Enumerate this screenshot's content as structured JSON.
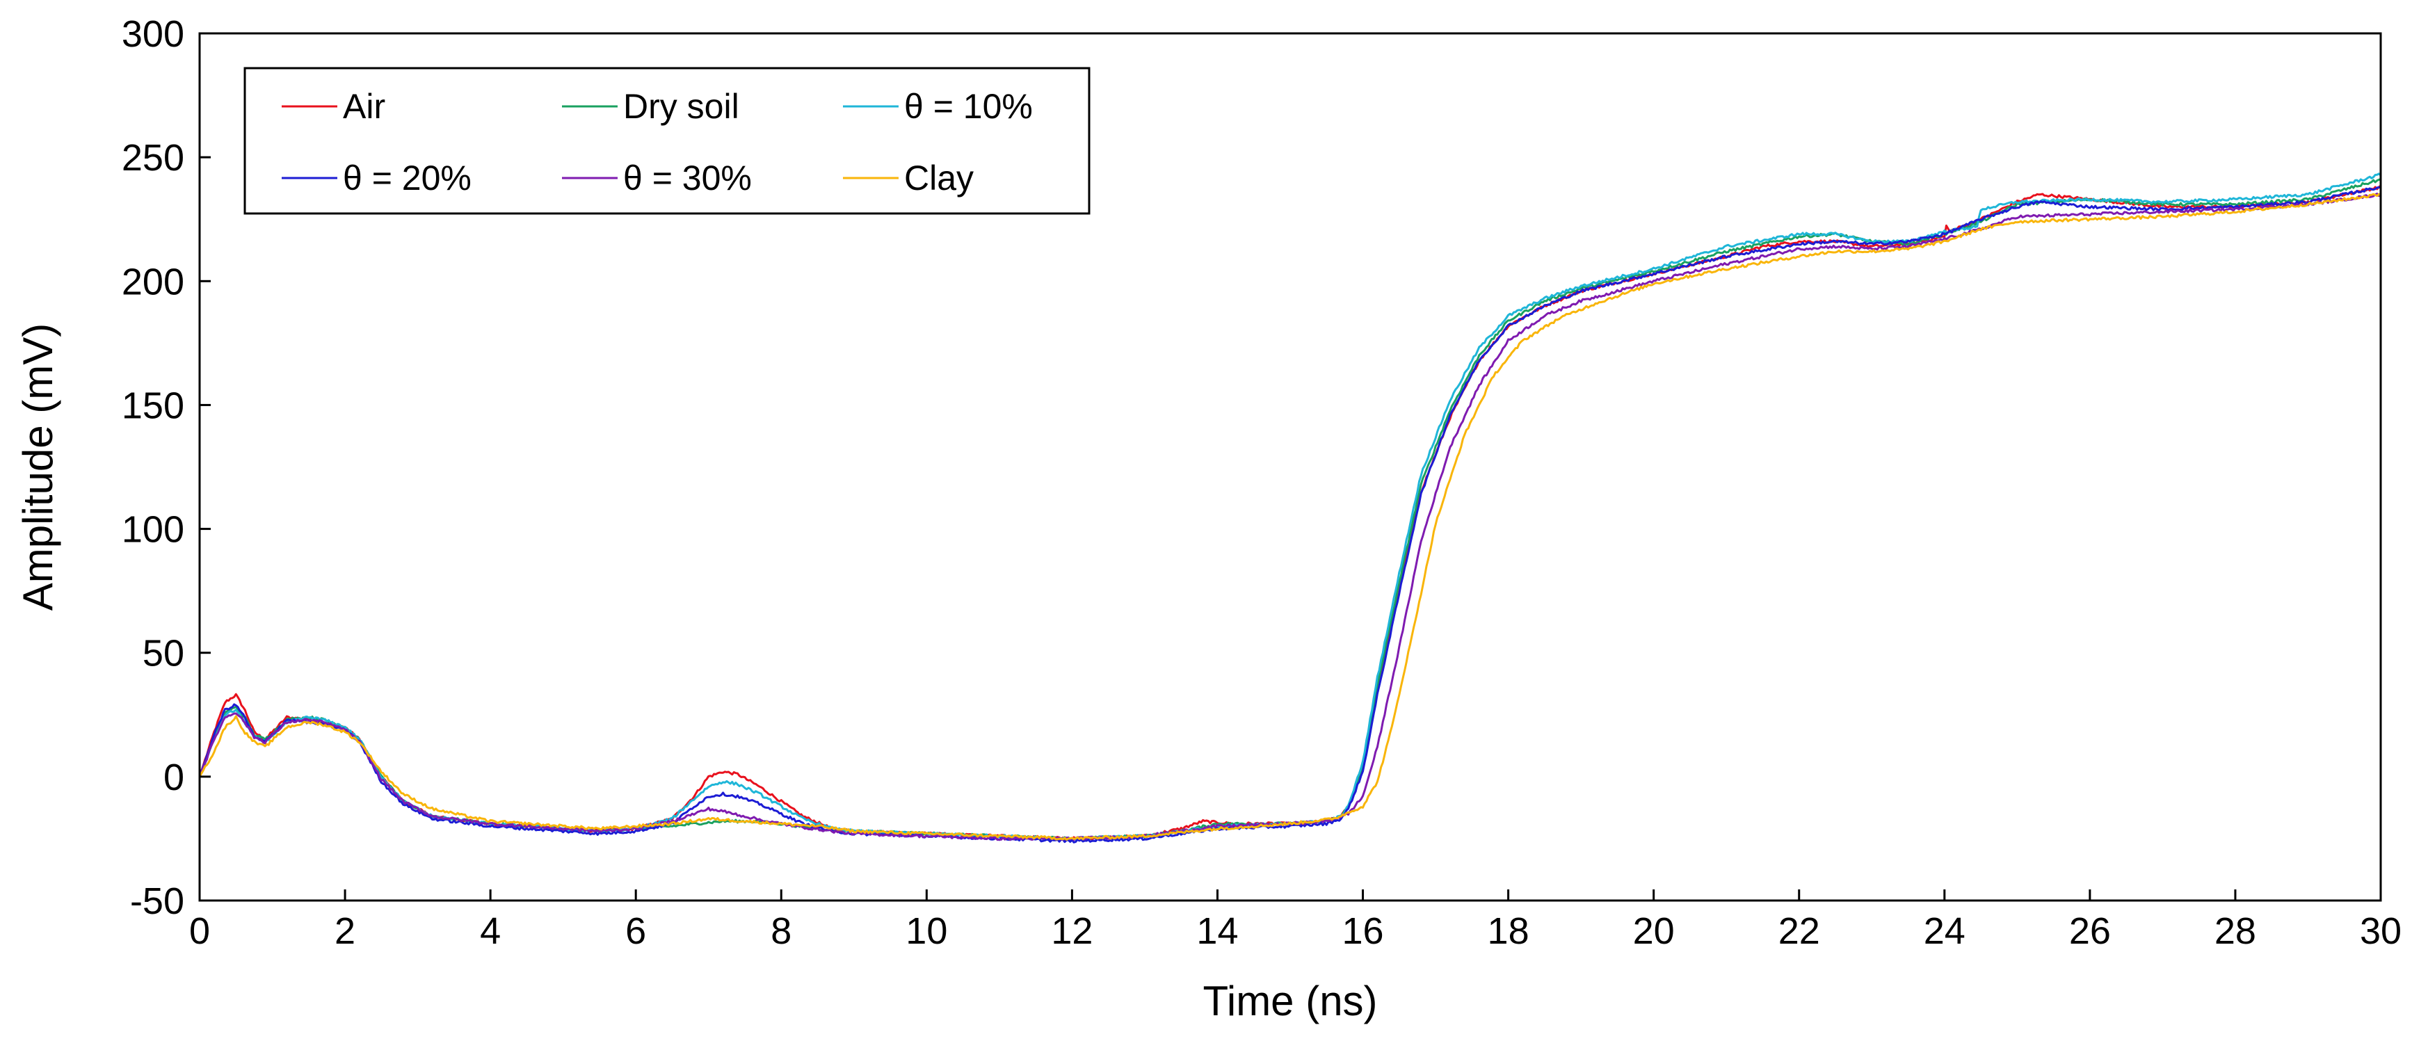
{
  "chart_data": {
    "type": "line",
    "title": "",
    "xlabel": "Time (ns)",
    "ylabel": "Amplitude (mV)",
    "xlim": [
      0,
      30
    ],
    "ylim": [
      -50,
      300
    ],
    "xticks": [
      0,
      2,
      4,
      6,
      8,
      10,
      12,
      14,
      16,
      18,
      20,
      22,
      24,
      26,
      28,
      30
    ],
    "yticks": [
      -50,
      0,
      50,
      100,
      150,
      200,
      250,
      300
    ],
    "xtick_labels": [
      "0",
      "2",
      "4",
      "6",
      "8",
      "10",
      "12",
      "14",
      "16",
      "18",
      "20",
      "22",
      "24",
      "26",
      "28",
      "30"
    ],
    "ytick_labels": [
      "-50",
      "0",
      "50",
      "100",
      "150",
      "200",
      "250",
      "300"
    ],
    "grid": false,
    "legend_position": "top-left",
    "series": [
      {
        "name": "Air",
        "color": "#e8111d",
        "x": [
          0,
          0.2,
          0.35,
          0.5,
          0.62,
          0.75,
          0.9,
          1.2,
          1.5,
          1.7,
          2.0,
          2.2,
          2.5,
          2.8,
          3.2,
          4,
          5,
          5.5,
          6,
          6.5,
          6.8,
          7.0,
          7.2,
          7.4,
          7.7,
          8.0,
          8.3,
          8.7,
          9,
          10,
          11,
          12,
          13,
          13.5,
          13.8,
          14.2,
          15,
          15.5,
          15.7,
          15.8,
          16,
          16.2,
          16.5,
          16.8,
          17.2,
          17.6,
          18,
          18.5,
          19,
          20,
          21,
          21.5,
          22,
          22.5,
          23,
          23.5,
          24,
          24.03,
          24.06,
          24.5,
          25,
          25.3,
          26,
          27,
          28,
          29,
          30
        ],
        "y": [
          0,
          18,
          30,
          33,
          27,
          18,
          15,
          24,
          23,
          22,
          20,
          15,
          0,
          -10,
          -16,
          -19,
          -21,
          -22,
          -21,
          -17,
          -8,
          0,
          2,
          1,
          -4,
          -10,
          -16,
          -21,
          -22,
          -23,
          -24,
          -25,
          -24,
          -21,
          -18,
          -19,
          -19,
          -18,
          -16,
          -12,
          3,
          35,
          75,
          115,
          145,
          168,
          182,
          190,
          196,
          203,
          210,
          214,
          216,
          216,
          214,
          215,
          218,
          223,
          220,
          225,
          232,
          235,
          233,
          230,
          230,
          232,
          238
        ]
      },
      {
        "name": "Dry soil",
        "color": "#1aa160",
        "x": [
          0,
          0.2,
          0.35,
          0.5,
          0.62,
          0.75,
          0.9,
          1.2,
          1.5,
          1.7,
          2.0,
          2.2,
          2.5,
          2.8,
          3.2,
          4,
          5,
          5.5,
          6,
          6.5,
          6.8,
          7.2,
          7.6,
          8.0,
          8.5,
          9,
          10,
          11,
          12,
          13,
          13.5,
          14,
          15,
          15.5,
          15.7,
          15.8,
          16,
          16.2,
          16.5,
          16.8,
          17.2,
          17.6,
          18,
          18.5,
          19,
          20,
          21,
          22,
          22.5,
          23,
          23.5,
          24,
          24.5,
          25,
          26,
          27,
          28,
          29,
          30
        ],
        "y": [
          0,
          16,
          26,
          28,
          24,
          17,
          15,
          23,
          24,
          23,
          20,
          15,
          0,
          -10,
          -16,
          -19,
          -21,
          -22,
          -21,
          -20,
          -19,
          -18,
          -18,
          -19,
          -21,
          -22,
          -23,
          -24,
          -25,
          -24,
          -22,
          -19,
          -19,
          -18,
          -16,
          -12,
          4,
          37,
          78,
          118,
          148,
          170,
          184,
          192,
          197,
          204,
          212,
          218,
          219,
          216,
          215,
          219,
          224,
          231,
          233,
          231,
          231,
          233,
          241
        ]
      },
      {
        "name": "θ = 10%",
        "color": "#1fb6d8",
        "x": [
          0,
          0.2,
          0.35,
          0.5,
          0.62,
          0.75,
          0.9,
          1.2,
          1.5,
          1.7,
          2.0,
          2.2,
          2.5,
          2.8,
          3.2,
          4,
          5,
          5.5,
          6,
          6.5,
          6.8,
          7.0,
          7.2,
          7.4,
          7.7,
          8.0,
          8.3,
          8.7,
          9,
          10,
          11,
          12,
          13,
          13.5,
          14,
          15,
          15.5,
          15.7,
          15.8,
          16,
          16.2,
          16.5,
          16.8,
          17.2,
          17.6,
          18,
          18.5,
          19,
          20,
          21,
          22,
          22.5,
          23,
          23.5,
          24,
          24.45,
          24.5,
          25,
          26,
          27,
          28,
          29,
          30
        ],
        "y": [
          0,
          15,
          25,
          27,
          22,
          16,
          14,
          22,
          24,
          23,
          20,
          15,
          0,
          -10,
          -16,
          -19,
          -21,
          -22,
          -21,
          -17,
          -9,
          -4,
          -2,
          -3,
          -7,
          -12,
          -17,
          -21,
          -22,
          -23,
          -24,
          -25,
          -24,
          -22,
          -20,
          -19,
          -18,
          -16,
          -12,
          6,
          40,
          82,
          122,
          152,
          173,
          186,
          193,
          198,
          205,
          214,
          219,
          219,
          216,
          216,
          220,
          222,
          229,
          232,
          233,
          232,
          233,
          235,
          243
        ]
      },
      {
        "name": "θ = 20%",
        "color": "#1c1cd4",
        "x": [
          0,
          0.2,
          0.35,
          0.5,
          0.62,
          0.75,
          0.9,
          1.2,
          1.5,
          1.7,
          2.0,
          2.2,
          2.5,
          2.8,
          3.2,
          4,
          5,
          5.5,
          6,
          6.5,
          6.8,
          7.0,
          7.2,
          7.4,
          7.7,
          8.0,
          8.3,
          8.7,
          9,
          10,
          11,
          12,
          13,
          13.5,
          14,
          15,
          15.5,
          15.7,
          15.8,
          16,
          16.2,
          16.5,
          16.8,
          17.2,
          17.6,
          18,
          18.5,
          19,
          20,
          21,
          22,
          22.5,
          23,
          23.5,
          24,
          24.5,
          25,
          25.3,
          26,
          27,
          28,
          29,
          30
        ],
        "y": [
          0,
          17,
          27,
          29,
          24,
          16,
          14,
          23,
          22,
          21,
          19,
          14,
          -2,
          -11,
          -17,
          -20,
          -22,
          -23,
          -22,
          -19,
          -12,
          -8,
          -7,
          -8,
          -11,
          -15,
          -19,
          -22,
          -23,
          -24,
          -25,
          -26,
          -25,
          -23,
          -21,
          -20,
          -19,
          -17,
          -13,
          2,
          33,
          74,
          114,
          146,
          168,
          182,
          190,
          196,
          203,
          210,
          215,
          216,
          215,
          216,
          219,
          225,
          230,
          232,
          230,
          229,
          230,
          232,
          238
        ]
      },
      {
        "name": "θ = 30%",
        "color": "#7f1bb0",
        "x": [
          0,
          0.2,
          0.35,
          0.5,
          0.62,
          0.75,
          0.9,
          1.2,
          1.5,
          1.7,
          2.0,
          2.2,
          2.5,
          2.8,
          3.2,
          4,
          5,
          5.5,
          6,
          6.5,
          6.8,
          7.0,
          7.2,
          7.5,
          7.8,
          8.2,
          8.7,
          9,
          10,
          11,
          12,
          13,
          13.5,
          14,
          15,
          15.5,
          15.8,
          16,
          16.2,
          16.5,
          16.8,
          17.2,
          17.6,
          18,
          18.5,
          19,
          20,
          21,
          22,
          22.5,
          23,
          23.5,
          24,
          24.5,
          25,
          26,
          27,
          28,
          29,
          30
        ],
        "y": [
          0,
          15,
          24,
          26,
          22,
          16,
          14,
          22,
          23,
          22,
          19,
          14,
          -1,
          -10,
          -16,
          -19,
          -21,
          -22,
          -21,
          -18,
          -15,
          -13,
          -14,
          -16,
          -18,
          -20,
          -22,
          -23,
          -24,
          -25,
          -25,
          -24,
          -22,
          -20,
          -19,
          -18,
          -15,
          -8,
          12,
          52,
          95,
          133,
          158,
          176,
          186,
          192,
          200,
          207,
          213,
          214,
          213,
          214,
          217,
          221,
          226,
          227,
          228,
          229,
          231,
          235
        ]
      },
      {
        "name": "Clay",
        "color": "#f9b50a",
        "x": [
          0,
          0.2,
          0.35,
          0.5,
          0.62,
          0.75,
          0.9,
          1.2,
          1.5,
          1.7,
          2.0,
          2.2,
          2.5,
          2.8,
          3.2,
          4,
          5,
          5.5,
          6,
          6.5,
          7.0,
          7.5,
          8.0,
          8.5,
          9,
          10,
          11,
          12,
          13,
          14,
          15,
          15.6,
          16,
          16.2,
          16.4,
          16.7,
          17,
          17.4,
          17.8,
          18.2,
          18.7,
          19.2,
          20,
          21,
          22,
          22.5,
          23,
          23.5,
          24,
          24.3,
          24.5,
          25,
          26,
          27,
          28,
          29,
          30
        ],
        "y": [
          0,
          10,
          20,
          24,
          18,
          14,
          12,
          20,
          22,
          21,
          18,
          14,
          2,
          -7,
          -13,
          -18,
          -20,
          -21,
          -20,
          -19,
          -17,
          -18,
          -19,
          -20,
          -22,
          -23,
          -24,
          -25,
          -24,
          -21,
          -19,
          -17,
          -12,
          -2,
          20,
          60,
          102,
          138,
          162,
          176,
          185,
          191,
          199,
          205,
          210,
          212,
          212,
          213,
          216,
          219,
          221,
          224,
          225,
          226,
          228,
          231,
          235
        ]
      }
    ]
  }
}
